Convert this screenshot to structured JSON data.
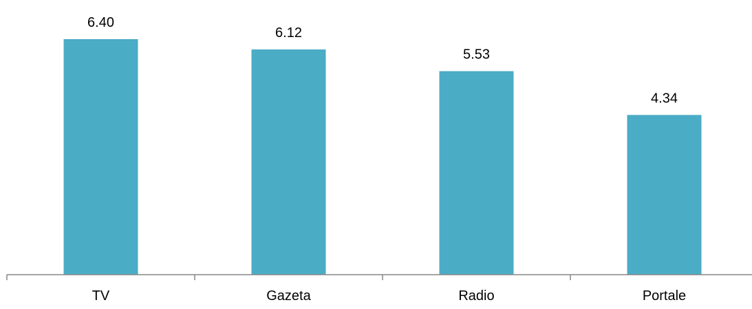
{
  "chart_data": {
    "type": "bar",
    "categories": [
      "TV",
      "Gazeta",
      "Radio",
      "Portale"
    ],
    "values": [
      6.4,
      6.12,
      5.53,
      4.34
    ],
    "value_labels": [
      "6.40",
      "6.12",
      "5.53",
      "4.34"
    ],
    "title": "",
    "xlabel": "",
    "ylabel": "",
    "ylim": [
      0,
      7.0
    ],
    "grid": false,
    "legend": "none",
    "bar_color": "#4BACC6"
  }
}
